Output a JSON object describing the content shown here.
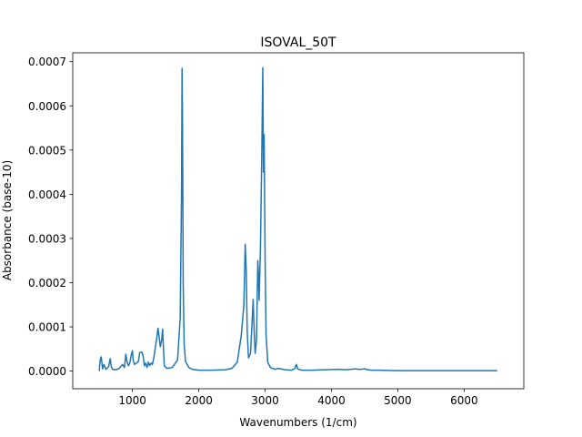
{
  "chart_data": {
    "type": "line",
    "title": "ISOVAL_50T",
    "xlabel": "Wavenumbers (1/cm)",
    "ylabel": "Absorbance (base-10)",
    "xlim": [
      100,
      6900
    ],
    "ylim": [
      -4e-05,
      0.00072
    ],
    "xticks": [
      1000,
      2000,
      3000,
      4000,
      5000,
      6000
    ],
    "yticks": [
      0.0,
      0.0001,
      0.0002,
      0.0003,
      0.0004,
      0.0005,
      0.0006,
      0.0007
    ],
    "xtick_labels": [
      "1000",
      "2000",
      "3000",
      "4000",
      "5000",
      "6000"
    ],
    "ytick_labels": [
      "0.0000",
      "0.0001",
      "0.0002",
      "0.0003",
      "0.0004",
      "0.0005",
      "0.0006",
      "0.0007"
    ],
    "grid": false,
    "legend": "none",
    "colors": {
      "line": "#1f77b4"
    },
    "series": [
      {
        "x": [
          500,
          510,
          520,
          530,
          540,
          550,
          570,
          600,
          640,
          665,
          680,
          700,
          750,
          800,
          850,
          880,
          900,
          920,
          940,
          960,
          980,
          1000,
          1010,
          1030,
          1060,
          1090,
          1110,
          1140,
          1160,
          1180,
          1200,
          1220,
          1240,
          1260,
          1280,
          1300,
          1320,
          1340,
          1370,
          1385,
          1400,
          1420,
          1440,
          1455,
          1465,
          1480,
          1520,
          1600,
          1680,
          1720,
          1740,
          1748,
          1755,
          1765,
          1780,
          1800,
          1850,
          1900,
          2000,
          2200,
          2400,
          2500,
          2580,
          2640,
          2680,
          2700,
          2715,
          2730,
          2750,
          2780,
          2800,
          2820,
          2835,
          2850,
          2870,
          2890,
          2900,
          2910,
          2930,
          2950,
          2965,
          2975,
          2985,
          3000,
          3015,
          3040,
          3080,
          3150,
          3200,
          3300,
          3400,
          3450,
          3470,
          3490,
          3550,
          3700,
          3900,
          4100,
          4200,
          4300,
          4350,
          4400,
          4450,
          4500,
          4550,
          4600,
          4700,
          5000,
          5500,
          6000,
          6500
        ],
        "y": [
          0.0,
          2e-05,
          3e-05,
          3.2e-05,
          1.8e-05,
          5e-06,
          1.5e-05,
          4e-06,
          1e-05,
          2.8e-05,
          1e-05,
          4e-06,
          3e-06,
          6e-06,
          1.5e-05,
          8e-06,
          3.8e-05,
          2e-05,
          1.2e-05,
          1.8e-05,
          3.5e-05,
          4.6e-05,
          2.5e-05,
          1.5e-05,
          1.8e-05,
          2.2e-05,
          4.2e-05,
          4.3e-05,
          3.5e-05,
          1.2e-05,
          1.8e-05,
          8e-06,
          2e-05,
          1.2e-05,
          1.8e-05,
          1.5e-05,
          2.8e-05,
          4.8e-05,
          7.8e-05,
          9.7e-05,
          8e-05,
          5.5e-05,
          7e-05,
          9.5e-05,
          6e-05,
          1.2e-05,
          6e-06,
          8e-06,
          2.5e-05,
          0.00012,
          0.0004,
          0.000685,
          0.00056,
          0.0002,
          6e-05,
          2.2e-05,
          8e-06,
          4e-06,
          2e-06,
          2e-06,
          3e-06,
          6e-06,
          2e-05,
          8e-05,
          0.00015,
          0.000287,
          0.00023,
          9e-05,
          3e-05,
          4e-05,
          0.0001,
          0.000162,
          9e-05,
          4e-05,
          7e-05,
          0.00025,
          0.00022,
          0.00016,
          0.00028,
          0.00049,
          0.000686,
          0.00045,
          0.000535,
          0.00025,
          8e-05,
          2e-05,
          8e-06,
          4e-06,
          6e-06,
          3e-06,
          2e-06,
          6e-06,
          1.5e-05,
          5e-06,
          2e-06,
          2e-06,
          3e-06,
          4e-06,
          3e-06,
          4e-06,
          5e-06,
          4e-06,
          4e-06,
          5e-06,
          3e-06,
          2e-06,
          2e-06,
          1e-06,
          1e-06,
          1e-06,
          1e-06
        ]
      }
    ]
  }
}
